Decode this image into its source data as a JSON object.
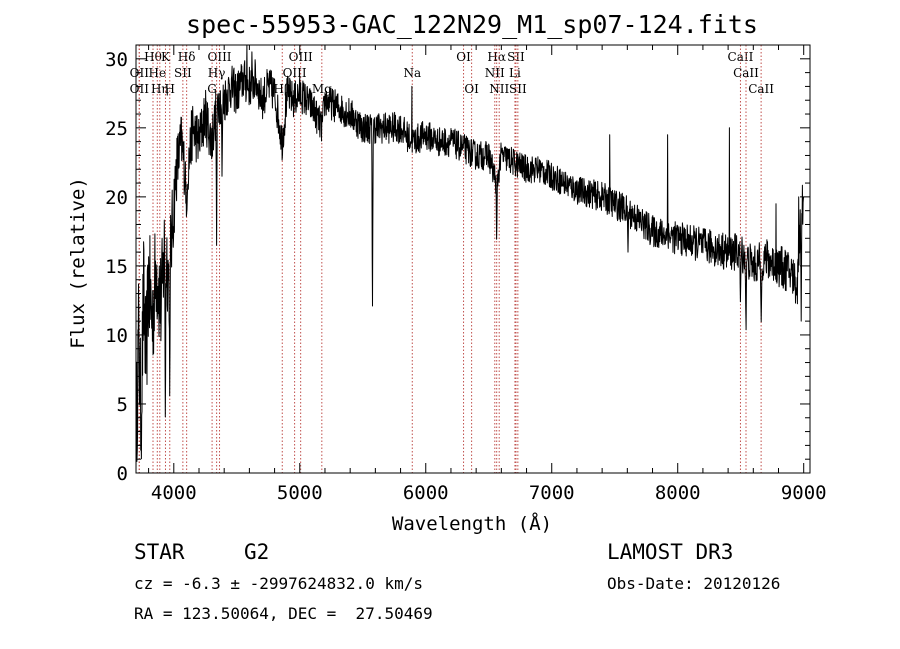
{
  "chart_data": {
    "type": "line",
    "title": "spec-55953-GAC_122N29_M1_sp07-124.fits",
    "xlabel": "Wavelength (Å)",
    "ylabel": "Flux (relative)",
    "xlim": [
      3700,
      9050
    ],
    "ylim": [
      0,
      31
    ],
    "xticks": [
      4000,
      5000,
      6000,
      7000,
      8000,
      9000
    ],
    "yticks": [
      0,
      5,
      10,
      15,
      20,
      25,
      30
    ],
    "series": [
      {
        "name": "flux",
        "anchors": [
          [
            3700,
            2
          ],
          [
            3720,
            10
          ],
          [
            3740,
            4
          ],
          [
            3760,
            13
          ],
          [
            3780,
            8
          ],
          [
            3800,
            14
          ],
          [
            3830,
            11
          ],
          [
            3860,
            15
          ],
          [
            3900,
            12
          ],
          [
            3930,
            17
          ],
          [
            3960,
            14
          ],
          [
            3990,
            18
          ],
          [
            4020,
            22
          ],
          [
            4060,
            24
          ],
          [
            4100,
            21
          ],
          [
            4150,
            25
          ],
          [
            4200,
            24
          ],
          [
            4250,
            26
          ],
          [
            4300,
            24
          ],
          [
            4350,
            27
          ],
          [
            4400,
            27
          ],
          [
            4450,
            28
          ],
          [
            4500,
            27.5
          ],
          [
            4550,
            28.5
          ],
          [
            4600,
            28
          ],
          [
            4650,
            28.5
          ],
          [
            4700,
            27
          ],
          [
            4750,
            28
          ],
          [
            4800,
            27.5
          ],
          [
            4861,
            24
          ],
          [
            4900,
            27.5
          ],
          [
            4950,
            27
          ],
          [
            5000,
            27.5
          ],
          [
            5100,
            26.5
          ],
          [
            5175,
            25
          ],
          [
            5200,
            27
          ],
          [
            5300,
            26.5
          ],
          [
            5400,
            26
          ],
          [
            5500,
            25
          ],
          [
            5600,
            25
          ],
          [
            5700,
            25
          ],
          [
            5800,
            25
          ],
          [
            5890,
            24
          ],
          [
            6000,
            24.5
          ],
          [
            6100,
            24
          ],
          [
            6200,
            24
          ],
          [
            6300,
            23.5
          ],
          [
            6400,
            23
          ],
          [
            6500,
            23
          ],
          [
            6563,
            21
          ],
          [
            6600,
            23
          ],
          [
            6700,
            22.5
          ],
          [
            6800,
            22
          ],
          [
            6900,
            22
          ],
          [
            7000,
            21.5
          ],
          [
            7200,
            20.5
          ],
          [
            7400,
            20
          ],
          [
            7600,
            19
          ],
          [
            7800,
            17.5
          ],
          [
            8000,
            17
          ],
          [
            8200,
            16.5
          ],
          [
            8400,
            16
          ],
          [
            8500,
            16
          ],
          [
            8600,
            15
          ],
          [
            8700,
            15.5
          ],
          [
            8800,
            15
          ],
          [
            8900,
            14.5
          ],
          [
            8950,
            13.5
          ],
          [
            8980,
            20
          ],
          [
            9000,
            19
          ]
        ],
        "noise": [
          [
            3700,
            4.5
          ],
          [
            3900,
            4
          ],
          [
            4050,
            2.2
          ],
          [
            4500,
            1.6
          ],
          [
            5200,
            1.2
          ],
          [
            6000,
            1.1
          ],
          [
            7000,
            1.0
          ],
          [
            8000,
            1.2
          ],
          [
            9000,
            1.6
          ]
        ],
        "features": [
          [
            3933,
            3
          ],
          [
            3968,
            5
          ],
          [
            4101,
            18
          ],
          [
            4340,
            16.5
          ],
          [
            4383,
            21
          ],
          [
            5577,
            11
          ],
          [
            6563,
            16.5
          ],
          [
            7605,
            16
          ],
          [
            8498,
            12
          ],
          [
            8542,
            10
          ],
          [
            8662,
            10.5
          ],
          [
            8980,
            11
          ],
          [
            9000,
            20
          ]
        ],
        "spikes": [
          [
            4580,
            31
          ],
          [
            4620,
            30.5
          ],
          [
            5890,
            28
          ],
          [
            7460,
            24.5
          ],
          [
            7920,
            24.5
          ],
          [
            8410,
            25
          ],
          [
            8780,
            19.5
          ],
          [
            8960,
            20
          ]
        ]
      }
    ],
    "emission_lines": [
      {
        "wavelength": 3835,
        "label": "Hθ",
        "row": 0
      },
      {
        "wavelength": 3726,
        "label": "OII",
        "row": 1
      },
      {
        "wavelength": 3869,
        "label": "He",
        "row": 1
      },
      {
        "wavelength": 3934,
        "label": "K",
        "row": 0
      },
      {
        "wavelength": 3968,
        "label": "H",
        "row": 2
      },
      {
        "wavelength": 4102,
        "label": "Hδ",
        "row": 0
      },
      {
        "wavelength": 4072,
        "label": "SII",
        "row": 1
      },
      {
        "wavelength": 3726,
        "label": "OII",
        "row": 2
      },
      {
        "wavelength": 3889,
        "label": "Hη",
        "row": 2
      },
      {
        "wavelength": 4363,
        "label": "OIII",
        "row": 0
      },
      {
        "wavelength": 4340,
        "label": "Hγ",
        "row": 1
      },
      {
        "wavelength": 4304,
        "label": "G",
        "row": 2
      },
      {
        "wavelength": 5007,
        "label": "OIII",
        "row": 0
      },
      {
        "wavelength": 4959,
        "label": "OIII",
        "row": 1
      },
      {
        "wavelength": 4861,
        "label": "Hβ",
        "row": 2
      },
      {
        "wavelength": 5175,
        "label": "Mg",
        "row": 2
      },
      {
        "wavelength": 5893,
        "label": "Na",
        "row": 1
      },
      {
        "wavelength": 6300,
        "label": "OI",
        "row": 0
      },
      {
        "wavelength": 6364,
        "label": "OI",
        "row": 2
      },
      {
        "wavelength": 6563,
        "label": "Hα",
        "row": 0
      },
      {
        "wavelength": 6548,
        "label": "NII",
        "row": 1
      },
      {
        "wavelength": 6583,
        "label": "NII",
        "row": 2
      },
      {
        "wavelength": 6716,
        "label": "SII",
        "row": 0
      },
      {
        "wavelength": 6708,
        "label": "Li",
        "row": 1
      },
      {
        "wavelength": 6731,
        "label": "SII",
        "row": 2
      },
      {
        "wavelength": 8498,
        "label": "CaII",
        "row": 0
      },
      {
        "wavelength": 8542,
        "label": "CaII",
        "row": 1
      },
      {
        "wavelength": 8662,
        "label": "CaII",
        "row": 2
      }
    ]
  },
  "info": {
    "class": "STAR",
    "subclass": "G2",
    "survey": "LAMOST DR3",
    "cz": "cz = -6.3 ± -2997624832.0 km/s",
    "obs_date": "Obs-Date: 20120126",
    "coords": "RA = 123.50064, DEC =  27.50469"
  },
  "colors": {
    "line": "#000000",
    "marker": "#c0504d",
    "background": "#ffffff"
  }
}
